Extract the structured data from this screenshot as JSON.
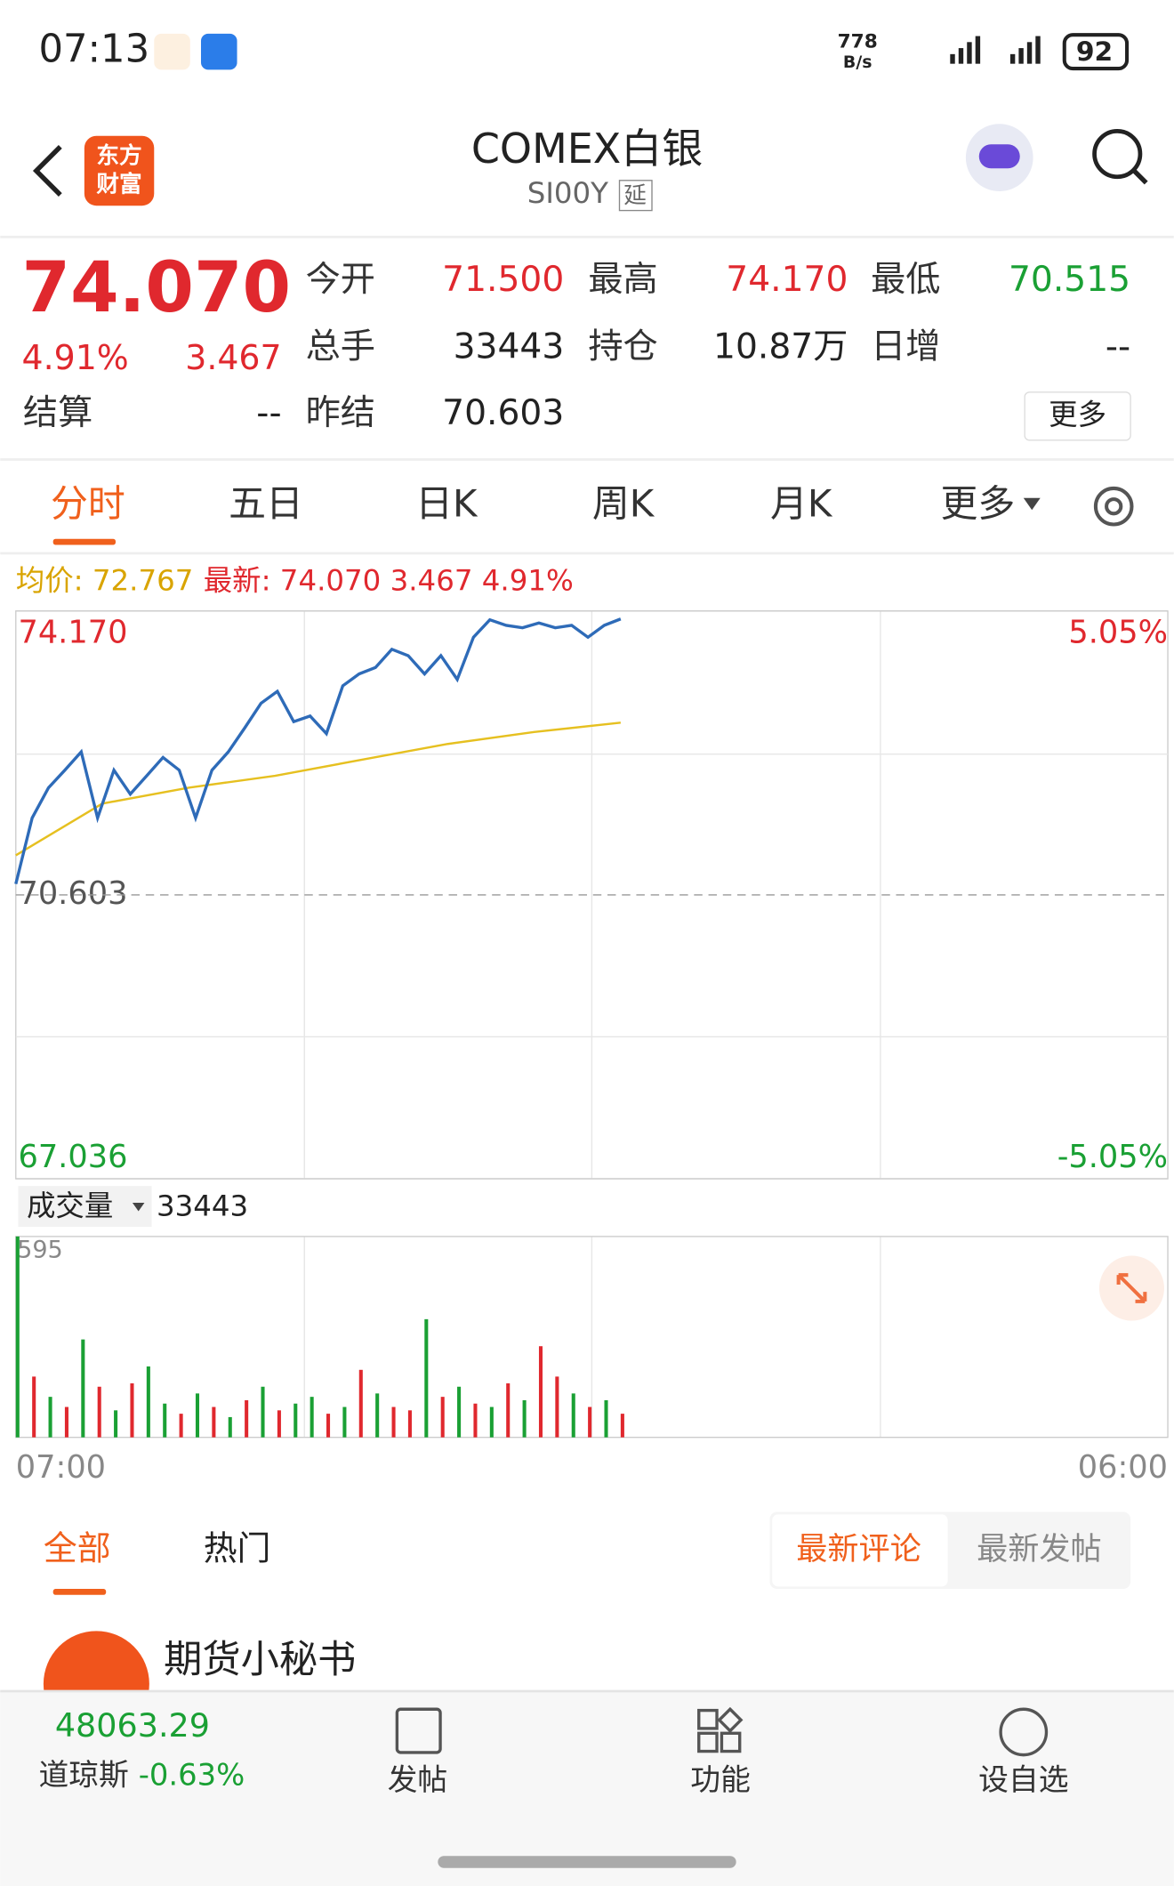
{
  "status_bar": {
    "time": "07:13",
    "net_speed": "778",
    "net_unit": "B/s",
    "battery": "92"
  },
  "header": {
    "logo_1": "东方",
    "logo_2": "财富",
    "title": "COMEX白银",
    "code": "SI00Y",
    "badge": "延"
  },
  "quote": {
    "price": "74.070",
    "change_pct": "4.91%",
    "change": "3.467",
    "fields": [
      [
        "今开",
        "71.500"
      ],
      [
        "最高",
        "74.170"
      ],
      [
        "最低",
        "70.515"
      ],
      [
        "总手",
        "33443"
      ],
      [
        "持仓",
        "10.87万"
      ],
      [
        "日增",
        "--"
      ],
      [
        "结算",
        "--"
      ],
      [
        "昨结",
        "70.603"
      ]
    ],
    "more": "更多"
  },
  "tabs": [
    "分时",
    "五日",
    "日K",
    "周K",
    "月K",
    "更多"
  ],
  "chart": {
    "avg_label": "均价: 72.767",
    "last_label": "最新: 74.070 3.467 4.91%",
    "ylim": [
      67.036,
      74.17
    ],
    "yticks": [
      {
        "value": 74.17,
        "label": "74.170"
      },
      {
        "value": 70.603,
        "label": "70.603"
      },
      {
        "value": 67.036,
        "label": "67.036"
      }
    ],
    "y2lim": [
      -5.05,
      5.05
    ],
    "y2ticks": [
      {
        "value": 5.05,
        "label": "5.05%"
      },
      {
        "value": -5.05,
        "label": "-5.05%"
      }
    ],
    "xticks": [
      "07:00",
      "06:00"
    ],
    "price": {
      "color": "#2e6bb8",
      "values": [
        70.74,
        71.57,
        71.95,
        72.17,
        72.4,
        71.57,
        72.17,
        71.87,
        72.1,
        72.33,
        72.17,
        71.57,
        72.17,
        72.4,
        72.7,
        73.01,
        73.16,
        72.78,
        72.85,
        72.63,
        73.23,
        73.38,
        73.46,
        73.69,
        73.61,
        73.38,
        73.61,
        73.31,
        73.84,
        74.06,
        73.99,
        73.96,
        74.02,
        73.96,
        73.99,
        73.84,
        73.99,
        74.07
      ]
    },
    "average": {
      "color": "#e6c020",
      "values": [
        71.1,
        71.75,
        71.95,
        72.1,
        72.3,
        72.5,
        72.65,
        72.767
      ]
    },
    "volume": {
      "label": "成交量",
      "total": "33443",
      "ylim": [
        0,
        595
      ],
      "yticks": [
        595
      ],
      "values": [
        595,
        180,
        120,
        90,
        290,
        150,
        80,
        160,
        210,
        100,
        70,
        130,
        90,
        60,
        110,
        150,
        80,
        100,
        120,
        70,
        90,
        200,
        130,
        90,
        80,
        350,
        120,
        150,
        100,
        90,
        160,
        110,
        270,
        180,
        130,
        90,
        110,
        70
      ],
      "colors": [
        "#1aa034",
        "#e0282e",
        "#1aa034",
        "#e0282e",
        "#1aa034",
        "#e0282e",
        "#1aa034",
        "#e0282e",
        "#1aa034",
        "#1aa034",
        "#e0282e",
        "#1aa034",
        "#e0282e",
        "#1aa034",
        "#e0282e",
        "#1aa034",
        "#e0282e",
        "#1aa034",
        "#1aa034",
        "#e0282e",
        "#1aa034",
        "#e0282e",
        "#1aa034",
        "#e0282e",
        "#e0282e",
        "#1aa034",
        "#e0282e",
        "#1aa034",
        "#e0282e",
        "#1aa034",
        "#e0282e",
        "#1aa034",
        "#e0282e",
        "#e0282e",
        "#1aa034",
        "#e0282e",
        "#1aa034",
        "#e0282e"
      ]
    }
  },
  "comments": {
    "tabs": [
      "全部",
      "热门"
    ],
    "sort": [
      "最新评论",
      "最新发帖"
    ],
    "first_author": "期货小秘书"
  },
  "bottom_bar": {
    "index_value": "48063.29",
    "index_name": "道琼斯",
    "index_change": "-0.63%",
    "actions": [
      "发帖",
      "功能",
      "设自选"
    ]
  }
}
